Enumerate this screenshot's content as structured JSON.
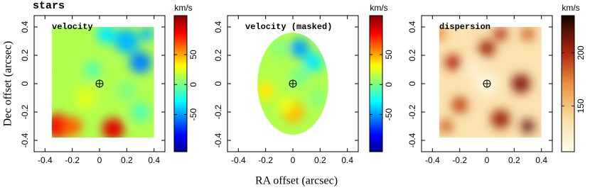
{
  "figure": {
    "title": "stars",
    "xlabel": "RA offset (arcsec)",
    "ylabel": "Dec offset (arcsec)"
  },
  "chart_data": [
    {
      "type": "heatmap",
      "label": "velocity",
      "colormap": "jet",
      "xlim": [
        -0.48,
        0.48
      ],
      "ylim": [
        -0.48,
        0.48
      ],
      "xticks": [
        -0.4,
        -0.2,
        0,
        0.2,
        0.4
      ],
      "yticks": [
        -0.4,
        -0.2,
        0,
        0.2,
        0.4
      ],
      "colorbar": {
        "label": "km/s",
        "lim": [
          -112,
          115
        ],
        "ticks": [
          -50,
          0,
          50
        ]
      }
    },
    {
      "type": "heatmap",
      "label": "velocity (masked)",
      "colormap": "jet",
      "xlim": [
        -0.48,
        0.48
      ],
      "ylim": [
        -0.48,
        0.48
      ],
      "xticks": [
        -0.4,
        -0.2,
        0,
        0.2,
        0.4
      ],
      "yticks": [
        -0.4,
        -0.2,
        0,
        0.2,
        0.4
      ],
      "colorbar": {
        "label": "km/s",
        "lim": [
          -112,
          115
        ],
        "ticks": [
          -50,
          0,
          50
        ]
      }
    },
    {
      "type": "heatmap",
      "label": "dispersion",
      "colormap": "heat",
      "xlim": [
        -0.48,
        0.48
      ],
      "ylim": [
        -0.48,
        0.48
      ],
      "xticks": [
        -0.4,
        -0.2,
        0,
        0.2,
        0.4
      ],
      "yticks": [
        -0.4,
        -0.2,
        0,
        0.2,
        0.4
      ],
      "colorbar": {
        "label": "km/s",
        "lim": [
          107,
          235
        ],
        "ticks": [
          150,
          200
        ]
      }
    }
  ]
}
